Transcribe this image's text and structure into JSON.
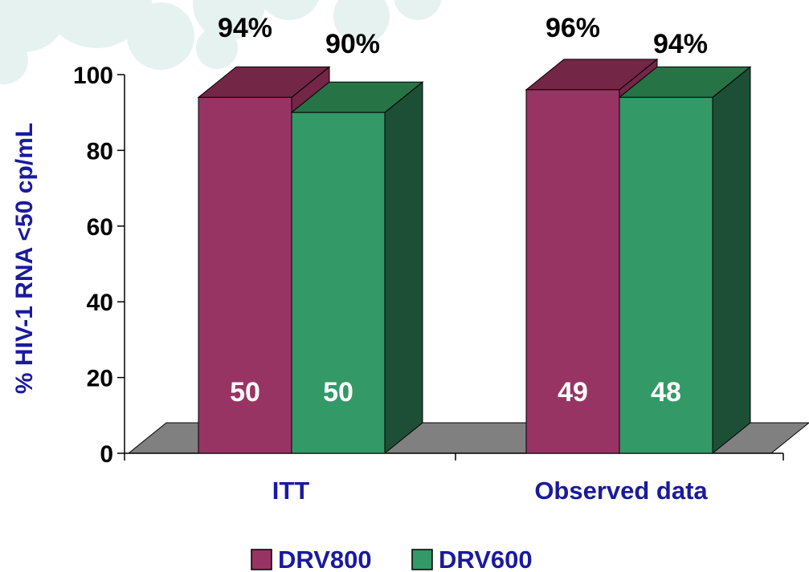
{
  "chart_data": {
    "type": "bar",
    "ylabel": "% HIV-1 RNA <50 cp/mL",
    "ylim": [
      0,
      100
    ],
    "yticks": [
      "0",
      "20",
      "40",
      "60",
      "80",
      "100"
    ],
    "categories": [
      "ITT",
      "Observed data"
    ],
    "series": [
      {
        "name": "DRV800",
        "values": [
          94,
          96
        ],
        "labels": [
          "94%",
          "96%"
        ],
        "n": [
          "50",
          "49"
        ]
      },
      {
        "name": "DRV600",
        "values": [
          90,
          94
        ],
        "labels": [
          "90%",
          "94%"
        ],
        "n": [
          "50",
          "48"
        ]
      }
    ],
    "legend_position": "bottom-center",
    "grid": false,
    "style": "3d",
    "colors": {
      "DRV800": {
        "front": "#983463",
        "top": "#732646",
        "side": "#732646"
      },
      "DRV600": {
        "front": "#339966",
        "top": "#267346",
        "side": "#1d4f36"
      },
      "floor": "#808080",
      "axis_text": "#000000",
      "ylabel_text": "#1a1a9e",
      "category_text": "#1a1a9e",
      "legend_text": "#1a1a9e",
      "count_text": "#ffffff",
      "circles": "#e6f2ef"
    }
  }
}
